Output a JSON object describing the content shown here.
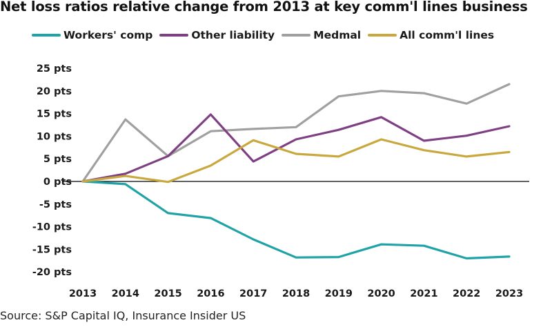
{
  "chart_data": {
    "type": "line",
    "title": "Net loss ratios relative change from 2013 at key comm'l lines business",
    "xlabel": "",
    "ylabel": "",
    "x": [
      "2013",
      "2014",
      "2015",
      "2016",
      "2017",
      "2018",
      "2019",
      "2020",
      "2021",
      "2022",
      "2023"
    ],
    "ylim": [
      -20,
      25
    ],
    "yticks": [
      25,
      20,
      15,
      10,
      5,
      0,
      -5,
      -10,
      -15,
      -20
    ],
    "ytick_labels": [
      "25 pts",
      "20 pts",
      "15 pts",
      "10 pts",
      "5 pts",
      "0 pts",
      "-5 pts",
      "-10 pts",
      "-15 pts",
      "-20 pts"
    ],
    "grid": false,
    "legend_position": "top",
    "series": [
      {
        "name": "Workers' comp",
        "color": "#1fa3a6",
        "values": [
          0,
          -0.6,
          -7.0,
          -8.1,
          -12.8,
          -16.8,
          -16.7,
          -13.9,
          -14.2,
          -17.0,
          -16.6
        ]
      },
      {
        "name": "Other liability",
        "color": "#7f3f83",
        "values": [
          0,
          1.7,
          5.6,
          14.8,
          4.4,
          9.3,
          11.4,
          14.2,
          9.0,
          10.1,
          12.2
        ]
      },
      {
        "name": "Medmal",
        "color": "#a0a0a0",
        "values": [
          0,
          13.7,
          5.6,
          11.1,
          11.6,
          12.0,
          18.8,
          20.0,
          19.5,
          17.2,
          21.5
        ]
      },
      {
        "name": "All comm'l lines",
        "color": "#c9a83e",
        "values": [
          0,
          1.2,
          -0.1,
          3.5,
          9.1,
          6.1,
          5.5,
          9.3,
          6.9,
          5.5,
          6.5
        ]
      }
    ]
  },
  "source": "Source: S&P Capital IQ, Insurance Insider US"
}
